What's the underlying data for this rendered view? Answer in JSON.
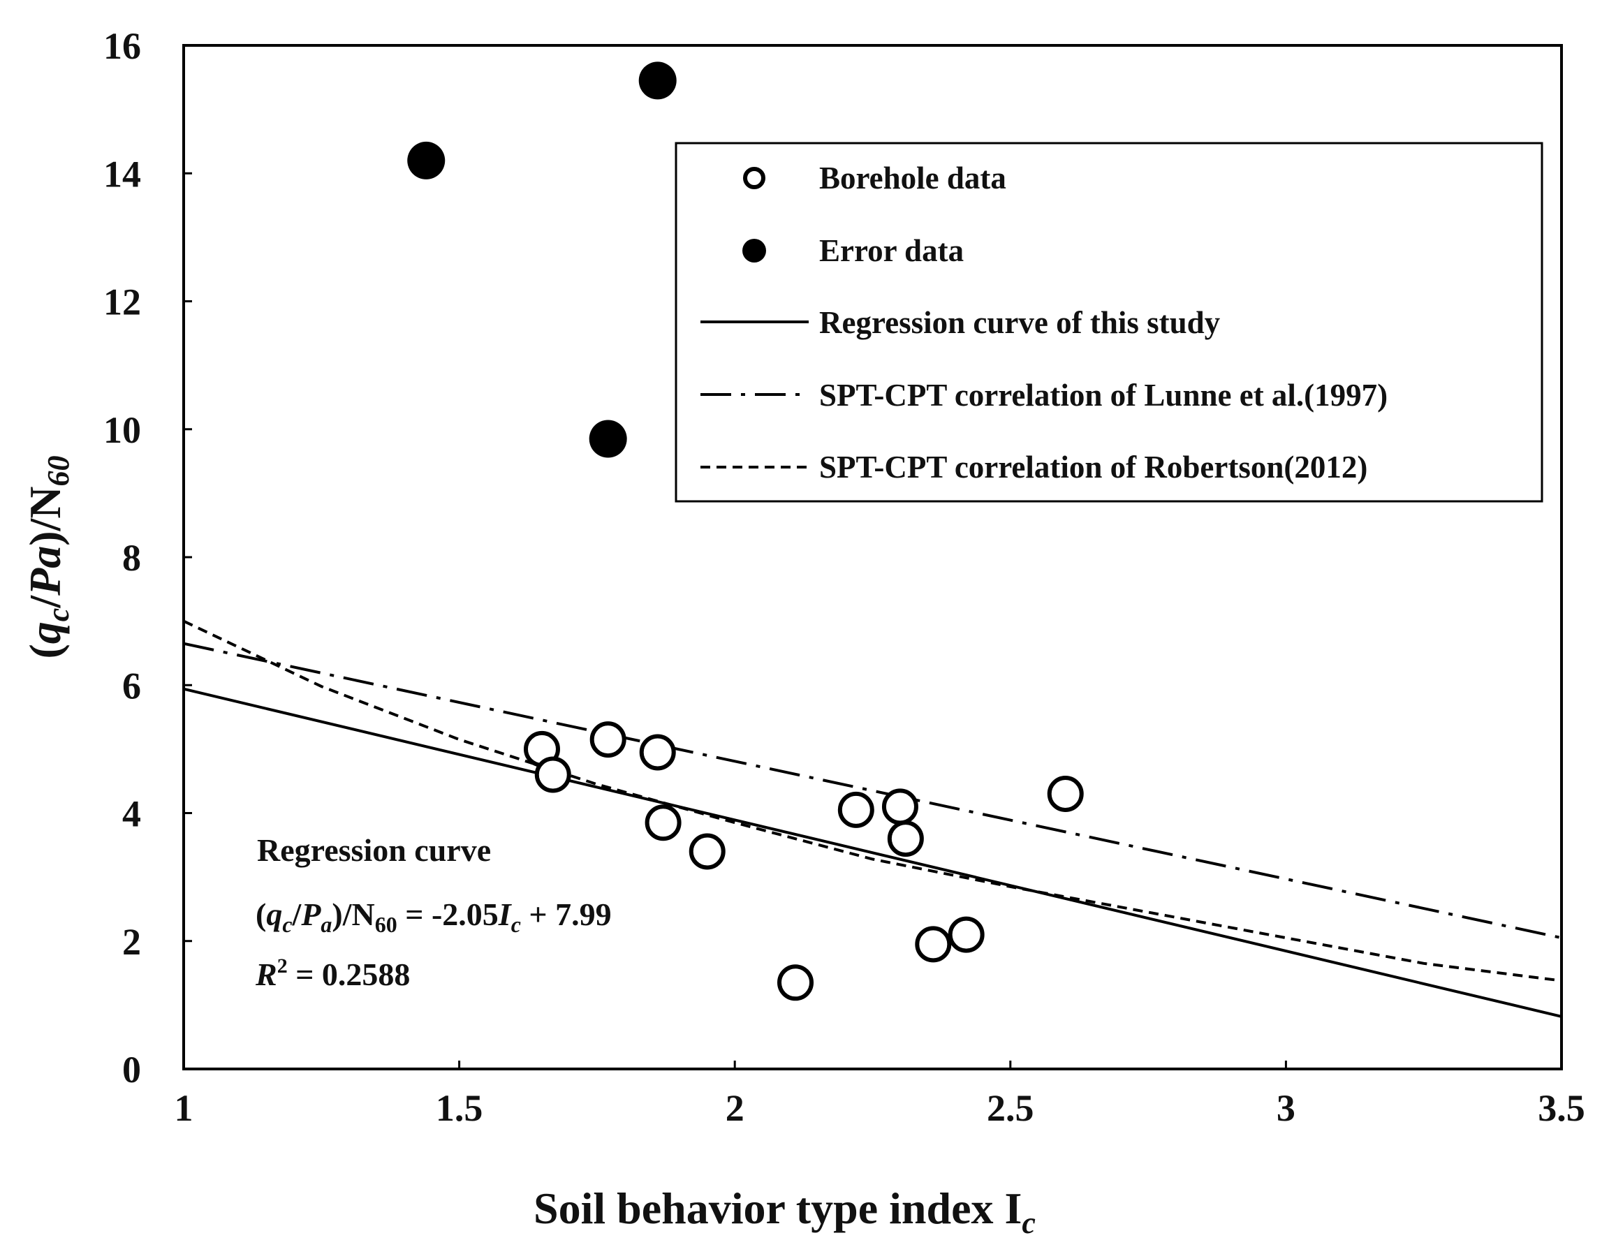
{
  "chart_data": {
    "type": "scatter",
    "xlabel": "Soil behavior type index I",
    "xlabel_sub": "c",
    "ylabel_parts": {
      "open": "(",
      "q": "q",
      "q_sub": "c",
      "slash": "/",
      "pa": "Pa",
      "close": ")/N",
      "n_sub": "60"
    },
    "xlim": [
      1,
      3.5
    ],
    "ylim": [
      0,
      16
    ],
    "x_ticks": [
      1,
      1.5,
      2,
      2.5,
      3,
      3.5
    ],
    "x_tick_labels": [
      "1",
      "1.5",
      "2",
      "2.5",
      "3",
      "3.5"
    ],
    "y_ticks": [
      0,
      2,
      4,
      6,
      8,
      10,
      12,
      14,
      16
    ],
    "y_tick_labels": [
      "0",
      "2",
      "4",
      "6",
      "8",
      "10",
      "12",
      "14",
      "16"
    ],
    "grid": false,
    "legend_position": "top-right",
    "series": [
      {
        "name": "Borehole data",
        "kind": "open-circle",
        "points": [
          {
            "x": 1.65,
            "y": 5.0
          },
          {
            "x": 1.67,
            "y": 4.6
          },
          {
            "x": 1.77,
            "y": 5.15
          },
          {
            "x": 1.86,
            "y": 4.95
          },
          {
            "x": 1.87,
            "y": 3.85
          },
          {
            "x": 1.95,
            "y": 3.4
          },
          {
            "x": 2.11,
            "y": 1.35
          },
          {
            "x": 2.22,
            "y": 4.05
          },
          {
            "x": 2.3,
            "y": 4.1
          },
          {
            "x": 2.31,
            "y": 3.6
          },
          {
            "x": 2.36,
            "y": 1.95
          },
          {
            "x": 2.42,
            "y": 2.1
          },
          {
            "x": 2.6,
            "y": 4.3
          }
        ]
      },
      {
        "name": "Error data",
        "kind": "filled-circle",
        "points": [
          {
            "x": 1.44,
            "y": 14.2
          },
          {
            "x": 1.86,
            "y": 15.45
          },
          {
            "x": 1.77,
            "y": 9.85
          }
        ]
      },
      {
        "name": "Regression curve of this study",
        "kind": "solid-line",
        "points": [
          {
            "x": 1.0,
            "y": 5.94
          },
          {
            "x": 3.5,
            "y": 0.82
          }
        ]
      },
      {
        "name": "SPT-CPT correlation of Lunne et al.(1997)",
        "kind": "dash-dot-line",
        "points": [
          {
            "x": 1.0,
            "y": 6.65
          },
          {
            "x": 3.5,
            "y": 2.05
          }
        ]
      },
      {
        "name": "SPT-CPT correlation of Robertson(2012)",
        "kind": "dashed-line",
        "points": [
          {
            "x": 1.0,
            "y": 7.0
          },
          {
            "x": 1.25,
            "y": 5.98
          },
          {
            "x": 1.5,
            "y": 5.15
          },
          {
            "x": 1.75,
            "y": 4.45
          },
          {
            "x": 2.0,
            "y": 3.85
          },
          {
            "x": 2.25,
            "y": 3.28
          },
          {
            "x": 2.5,
            "y": 2.85
          },
          {
            "x": 2.75,
            "y": 2.45
          },
          {
            "x": 3.0,
            "y": 2.05
          },
          {
            "x": 3.25,
            "y": 1.65
          },
          {
            "x": 3.5,
            "y": 1.38
          }
        ]
      }
    ],
    "annotation": {
      "title": "Regression curve",
      "eq": {
        "open": "(",
        "q": "q",
        "q_sub": "c",
        "slash": "/",
        "p": "P",
        "p_sub": "a",
        "close": ")/N",
        "n_sub": "60",
        "mid": " = -2.05",
        "i": "I",
        "i_sub": "c",
        "tail": " + 7.99"
      },
      "r2": {
        "r": "R",
        "sup": "2",
        "rest": " = 0.2588"
      }
    }
  }
}
